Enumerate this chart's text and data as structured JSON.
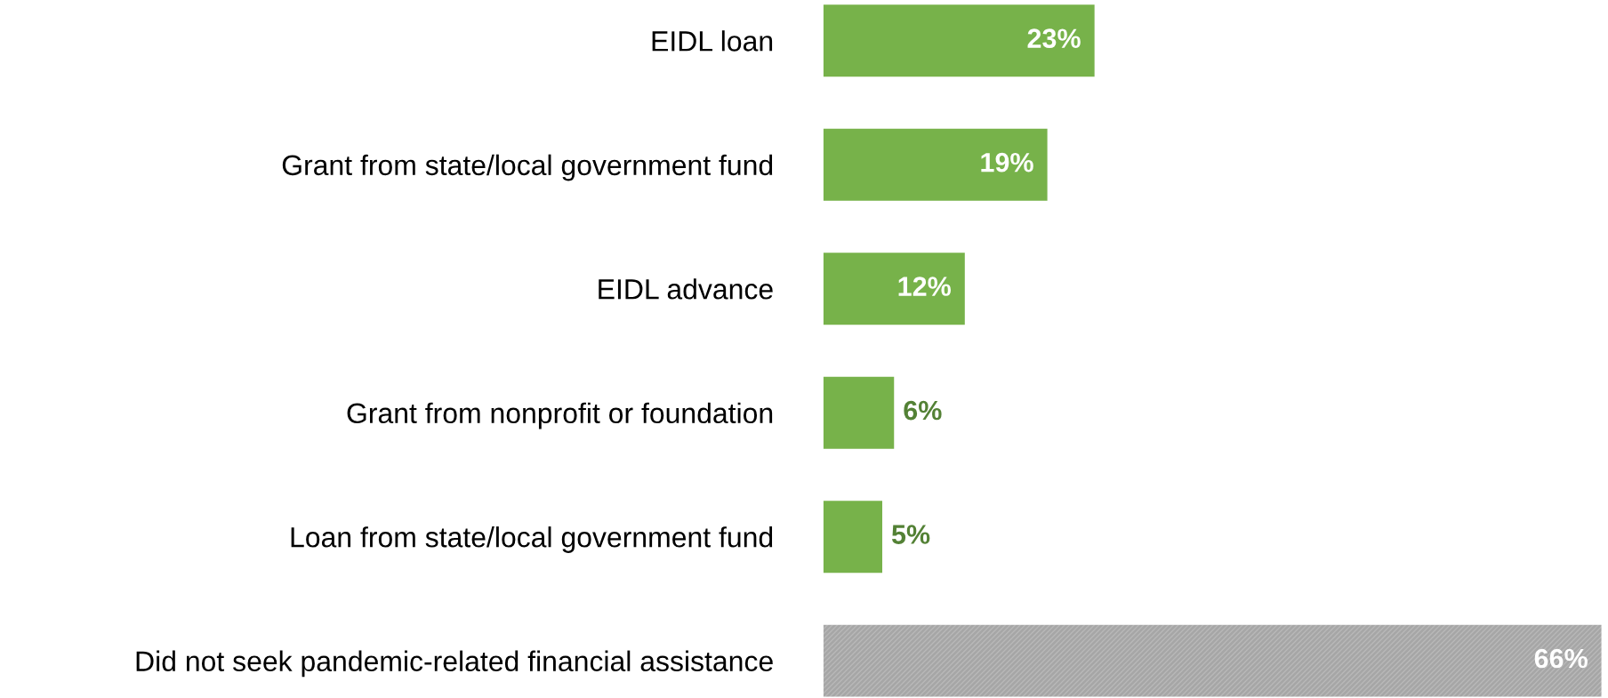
{
  "chart_data": {
    "type": "bar",
    "orientation": "horizontal",
    "categories": [
      "EIDL loan",
      "Grant from state/local government fund",
      "EIDL advance",
      "Grant from nonprofit or foundation",
      "Loan from state/local government fund",
      "Did not seek pandemic-related financial assistance"
    ],
    "values": [
      23,
      19,
      12,
      6,
      5,
      66
    ],
    "colors": [
      "#77b24a",
      "#77b24a",
      "#77b24a",
      "#77b24a",
      "#77b24a",
      "#a6a6a6"
    ],
    "value_labels": [
      "23%",
      "19%",
      "12%",
      "6%",
      "5%",
      "66%"
    ],
    "xlim": [
      0,
      66
    ],
    "tick_labels": "y",
    "grid": false
  }
}
